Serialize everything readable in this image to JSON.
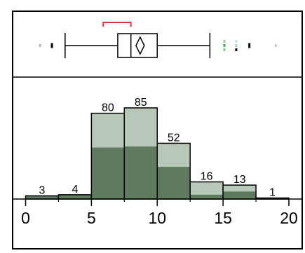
{
  "chart_data": {
    "type": "bar",
    "subtype": "histogram-with-boxplot",
    "bins": [
      {
        "start": 0.0,
        "end": 2.5,
        "count": 3,
        "selected": 3
      },
      {
        "start": 2.5,
        "end": 5.0,
        "count": 4,
        "selected": 4
      },
      {
        "start": 5.0,
        "end": 7.5,
        "count": 80,
        "selected": 48
      },
      {
        "start": 7.5,
        "end": 10.0,
        "count": 85,
        "selected": 49
      },
      {
        "start": 10.0,
        "end": 12.5,
        "count": 52,
        "selected": 30
      },
      {
        "start": 12.5,
        "end": 15.0,
        "count": 16,
        "selected": 4
      },
      {
        "start": 15.0,
        "end": 17.5,
        "count": 13,
        "selected": 7
      },
      {
        "start": 17.5,
        "end": 20.0,
        "count": 1,
        "selected": 0
      }
    ],
    "bar_labels": [
      "3",
      "4",
      "80",
      "85",
      "52",
      "16",
      "13",
      "1"
    ],
    "x_ticks": [
      {
        "value": 0,
        "label": "0"
      },
      {
        "value": 5,
        "label": "5"
      },
      {
        "value": 10,
        "label": "10"
      },
      {
        "value": 15,
        "label": "15"
      },
      {
        "value": 20,
        "label": "20"
      }
    ],
    "xlim": [
      -1,
      21
    ],
    "ylim": [
      0,
      100
    ],
    "boxplot": {
      "whisker_low": 3.0,
      "q1": 7.0,
      "median": 8.0,
      "q3": 10.0,
      "whisker_high": 14.0,
      "mean": 8.7,
      "shortest_half": [
        5.9,
        8.0
      ],
      "outliers": [
        {
          "x": 1.1,
          "y_offset": 0,
          "color": "#b8b8b8",
          "mark": "small"
        },
        {
          "x": 2.0,
          "y_offset": 0,
          "color": "#000000",
          "mark": "tall"
        },
        {
          "x": 15.1,
          "y_offset": -6,
          "color": "#9fc9a0",
          "mark": "small"
        },
        {
          "x": 15.1,
          "y_offset": 0,
          "color": "#3cb043",
          "mark": "small"
        },
        {
          "x": 15.1,
          "y_offset": 6,
          "color": "#7fd07f",
          "mark": "small"
        },
        {
          "x": 16.0,
          "y_offset": -6,
          "color": "#c7dfe5",
          "mark": "small"
        },
        {
          "x": 16.0,
          "y_offset": 0,
          "color": "#9fd6c0",
          "mark": "small"
        },
        {
          "x": 16.0,
          "y_offset": 6,
          "color": "#000000",
          "mark": "small"
        },
        {
          "x": 17.0,
          "y_offset": 0,
          "color": "#000000",
          "mark": "tall"
        },
        {
          "x": 19.0,
          "y_offset": 0,
          "color": "#c8c8c8",
          "mark": "small"
        }
      ]
    },
    "colors": {
      "full": "#b7c7b8",
      "selected": "#5f7a5f",
      "outline": "#000000",
      "bracket": "#e0343f"
    }
  }
}
